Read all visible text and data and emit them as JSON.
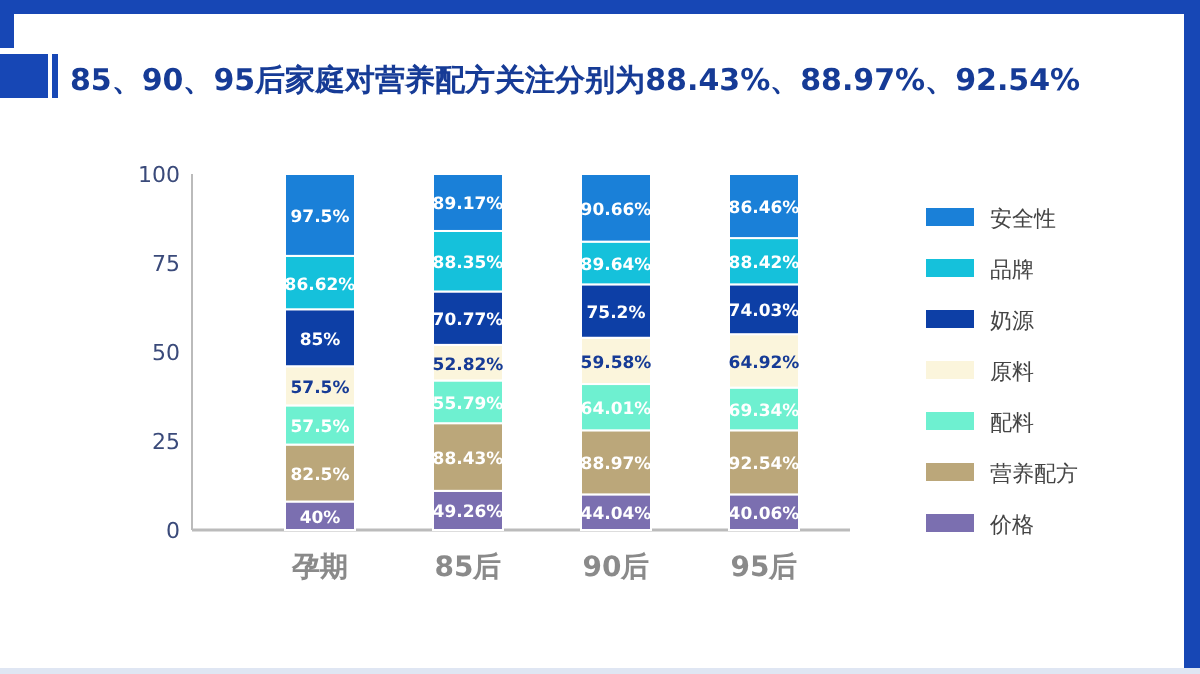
{
  "chart_data": {
    "type": "bar",
    "stacked": true,
    "title": "85、90、95后家庭对营养配方关注分别为88.43%、88.97%、92.54%",
    "categories": [
      "孕期",
      "85后",
      "90后",
      "95后"
    ],
    "ylim": [
      0,
      100
    ],
    "yticks": [
      0,
      25,
      50,
      75,
      100
    ],
    "grid": false,
    "legend": "right",
    "series": [
      {
        "name": "价格",
        "color": "#7b6fb0",
        "values": [
          8,
          11,
          10,
          10
        ]
      },
      {
        "name": "营养配方",
        "color": "#bba77a",
        "values": [
          16,
          19,
          18,
          18
        ]
      },
      {
        "name": "配料",
        "color": "#6ef0d0",
        "values": [
          11,
          12,
          13,
          12
        ]
      },
      {
        "name": "原料",
        "color": "#fbf5dc",
        "values": [
          11,
          10,
          13,
          15
        ]
      },
      {
        "name": "奶源",
        "color": "#0d3fa6",
        "values": [
          16,
          15,
          15,
          14
        ]
      },
      {
        "name": "品牌",
        "color": "#15c1db",
        "values": [
          15,
          17,
          12,
          13
        ]
      },
      {
        "name": "安全性",
        "color": "#1a80d8",
        "values": [
          23,
          16,
          19,
          18
        ]
      }
    ],
    "annotations": [
      {
        "text": "40%",
        "x": "孕期",
        "y": 8
      },
      {
        "text": "49.26%",
        "x": "85后",
        "y": 11
      },
      {
        "text": "44.04%",
        "x": "90后",
        "y": 10
      },
      {
        "text": "40.06%",
        "x": "95后",
        "y": 10
      },
      {
        "text": "82.5%",
        "x": "孕期",
        "y": 24
      },
      {
        "text": "88.43%",
        "x": "85后",
        "y": 30
      },
      {
        "text": "88.97%",
        "x": "90后",
        "y": 28
      },
      {
        "text": "92.54%",
        "x": "95后",
        "y": 28
      },
      {
        "text": "57.5%",
        "x": "孕期",
        "y": 46
      },
      {
        "text": "52.82%",
        "x": "85后",
        "y": 52
      },
      {
        "text": "59.58%",
        "x": "90后",
        "y": 54
      },
      {
        "text": "64.92%",
        "x": "95后",
        "y": 55
      },
      {
        "text": "57.5%",
        "x": "孕期",
        "y": 35
      },
      {
        "text": "55.79%",
        "x": "85后",
        "y": 42
      },
      {
        "text": "64.01%",
        "x": "90后",
        "y": 41
      },
      {
        "text": "69.34%",
        "x": "95后",
        "y": 40
      },
      {
        "text": "85%",
        "x": "孕期",
        "y": 62
      },
      {
        "text": "70.77%",
        "x": "85后",
        "y": 67
      },
      {
        "text": "75.2%",
        "x": "90后",
        "y": 69
      },
      {
        "text": "74.03%",
        "x": "95后",
        "y": 69
      },
      {
        "text": "86.62%",
        "x": "孕期",
        "y": 77
      },
      {
        "text": "88.35%",
        "x": "85后",
        "y": 84
      },
      {
        "text": "89.64%",
        "x": "90后",
        "y": 81
      },
      {
        "text": "88.42%",
        "x": "95后",
        "y": 82
      },
      {
        "text": "97.5%",
        "x": "孕期",
        "y": 100
      },
      {
        "text": "89.17%",
        "x": "85后",
        "y": 100
      },
      {
        "text": "90.66%",
        "x": "90后",
        "y": 100
      },
      {
        "text": "86.46%",
        "x": "95后",
        "y": 100
      }
    ]
  }
}
